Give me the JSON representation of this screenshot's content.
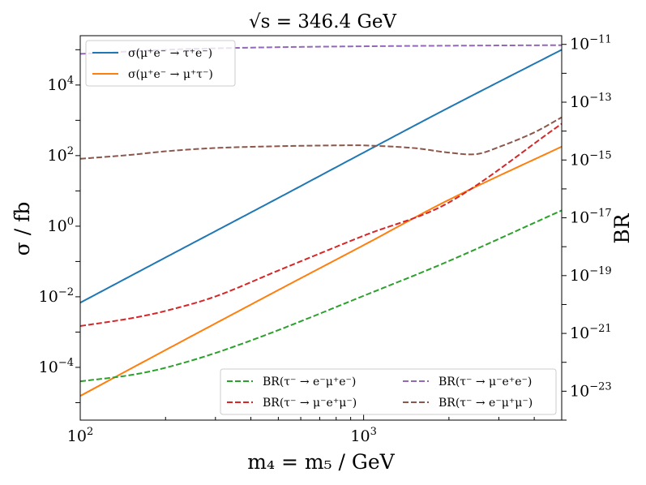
{
  "chart_data": {
    "type": "line",
    "title": "√s = 346.4 GeV",
    "xlabel": "m₄ = m₅ / GeV",
    "ylabel_left": "σ / fb",
    "ylabel_right": "BR",
    "xscale": "log",
    "yscale_left": "log",
    "yscale_right": "log",
    "xlim": [
      100,
      5000
    ],
    "ylim_left": [
      3.2e-06,
      250000.0
    ],
    "ylim_right": [
      1e-24,
      2e-11
    ],
    "x_ticks": [
      {
        "value": 100,
        "label": "10",
        "exp": "2"
      },
      {
        "value": 1000,
        "label": "10",
        "exp": "3"
      }
    ],
    "y_ticks_left": [
      {
        "value": 0.0001,
        "label": "10",
        "exp": "−4"
      },
      {
        "value": 0.01,
        "label": "10",
        "exp": "−2"
      },
      {
        "value": 1,
        "label": "10",
        "exp": "0"
      },
      {
        "value": 100,
        "label": "10",
        "exp": "2"
      },
      {
        "value": 10000,
        "label": "10",
        "exp": "4"
      }
    ],
    "y_ticks_right": [
      {
        "value": 1e-23,
        "label": "10",
        "exp": "−23"
      },
      {
        "value": 1e-21,
        "label": "10",
        "exp": "−21"
      },
      {
        "value": 1e-19,
        "label": "10",
        "exp": "−19"
      },
      {
        "value": 1e-17,
        "label": "10",
        "exp": "−17"
      },
      {
        "value": 1e-15,
        "label": "10",
        "exp": "−15"
      },
      {
        "value": 1e-13,
        "label": "10",
        "exp": "−13"
      },
      {
        "value": 1e-11,
        "label": "10",
        "exp": "−11"
      }
    ],
    "grid": false,
    "legends": [
      {
        "placement": "upper-left",
        "entries": [
          "sigma_tau",
          "sigma_mu"
        ]
      },
      {
        "placement": "lower-right",
        "columns": 2,
        "entries": [
          "br_e_mu_e",
          "br_mu_e_mu",
          "br_mu_e_e",
          "br_e_mu_mu"
        ]
      }
    ],
    "series": [
      {
        "id": "sigma_tau",
        "name": "σ(μ⁺e⁻ → τ⁺e⁻)",
        "axis": "left",
        "style": "solid",
        "color": "#1f77b4",
        "x": [
          100,
          200,
          500,
          1000,
          2000,
          5000
        ],
        "y": [
          0.0068,
          0.13,
          6.3,
          122,
          2300,
          100000.0
        ]
      },
      {
        "id": "sigma_mu",
        "name": "σ(μ⁺e⁻ → μ⁺τ⁻)",
        "axis": "left",
        "style": "solid",
        "color": "#ff7f0e",
        "x": [
          100,
          200,
          500,
          1000,
          2000,
          5000
        ],
        "y": [
          1.55e-05,
          0.00031,
          0.0155,
          0.29,
          5.6,
          180
        ]
      },
      {
        "id": "br_e_mu_e",
        "name": "BR(τ⁻ → e⁻μ⁺e⁻)",
        "axis": "right",
        "style": "dashed",
        "color": "#2ca02c",
        "x": [
          100,
          150,
          200,
          300,
          500,
          1000,
          2000,
          5000
        ],
        "y": [
          2.2e-23,
          3.6e-23,
          6.5e-23,
          2.1e-22,
          1.3e-21,
          2e-20,
          3.2e-19,
          1.8e-17
        ]
      },
      {
        "id": "br_mu_e_mu",
        "name": "BR(τ⁻ → μ⁻e⁺μ⁻)",
        "axis": "right",
        "style": "dashed",
        "color": "#d62728",
        "x": [
          100,
          150,
          200,
          300,
          500,
          1000,
          2000,
          5000
        ],
        "y": [
          1.8e-21,
          3.3e-21,
          6e-21,
          1.9e-20,
          1.5e-19,
          2.4e-18,
          3.4e-17,
          1.8e-14
        ]
      },
      {
        "id": "br_mu_e_e",
        "name": "BR(τ⁻ → μ⁻e⁺e⁻)",
        "axis": "right",
        "style": "dashed",
        "color": "#9467bd",
        "x": [
          100,
          200,
          300,
          500,
          1000,
          2000,
          5000
        ],
        "y": [
          4.7e-12,
          6.5e-12,
          7.3e-12,
          8e-12,
          8.6e-12,
          9e-12,
          9.4e-12
        ]
      },
      {
        "id": "br_e_mu_mu",
        "name": "BR(τ⁻ → e⁻μ⁺μ⁻)",
        "axis": "right",
        "style": "dashed",
        "color": "#8c564b",
        "x": [
          100,
          150,
          200,
          300,
          500,
          800,
          1000,
          1500,
          2000,
          2500,
          3000,
          4000,
          5000
        ],
        "y": [
          1.1e-15,
          1.5e-15,
          2e-15,
          2.6e-15,
          3e-15,
          3.2e-15,
          3.2e-15,
          2.6e-15,
          1.8e-15,
          1.6e-15,
          2.8e-15,
          9e-15,
          3e-14
        ]
      }
    ]
  }
}
